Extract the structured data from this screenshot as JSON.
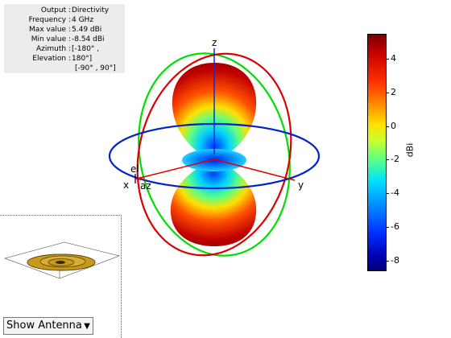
{
  "info_panel": {
    "rows": [
      {
        "label": "Output :",
        "value": "Directivity"
      },
      {
        "label": "Frequency :",
        "value": "4 GHz"
      },
      {
        "label": "Max value :",
        "value": "5.49 dBi"
      },
      {
        "label": "Min value :",
        "value": "-8.54 dBi"
      },
      {
        "label": "Azimuth :",
        "value": "[-180° ,"
      },
      {
        "label": "Elevation :",
        "value": "180°]"
      }
    ],
    "extra_line": "[-90° , 90°]"
  },
  "axes": {
    "x": "x",
    "y": "y",
    "z": "z",
    "az": "az",
    "el": "el"
  },
  "colorbar": {
    "unit": "dBi",
    "ticks": [
      "4",
      "2",
      "0",
      "-2",
      "-4",
      "-6",
      "-8"
    ],
    "min": -8.54,
    "max": 5.49
  },
  "controls": {
    "show_selector": "Show Antenna"
  }
}
